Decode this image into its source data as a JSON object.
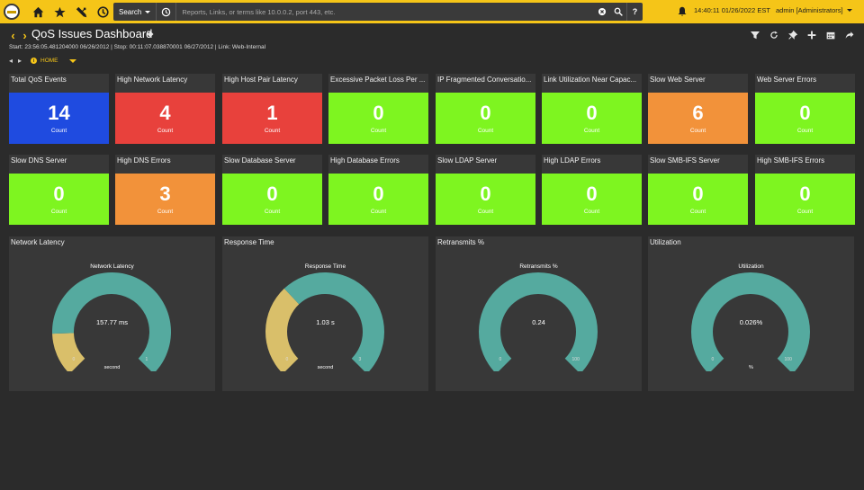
{
  "topbar": {
    "search_type": "Search",
    "search_placeholder": "Reports, Links, or terms like 10.0.0.2, port 443, etc.",
    "help_label": "?",
    "clock": "14:40:11 01/26/2022 EST",
    "user": "admin [Administrators]"
  },
  "header": {
    "title": "QoS Issues Dashboard",
    "subtitle": "Start: 23:56:05.481204000 06/26/2012 | Stop: 00:11:07.038870001 06/27/2012 | Link: Web-Internal",
    "breadcrumb": "HOME"
  },
  "tiles": [
    {
      "label": "Total QoS Events",
      "value": "14",
      "unit": "Count",
      "color": "#1f4be0"
    },
    {
      "label": "High Network Latency",
      "value": "4",
      "unit": "Count",
      "color": "#e8413c"
    },
    {
      "label": "High Host Pair Latency",
      "value": "1",
      "unit": "Count",
      "color": "#e8413c"
    },
    {
      "label": "Excessive Packet Loss Per ...",
      "value": "0",
      "unit": "Count",
      "color": "#7ef520"
    },
    {
      "label": "IP Fragmented Conversatio...",
      "value": "0",
      "unit": "Count",
      "color": "#7ef520"
    },
    {
      "label": "Link Utilization Near Capac...",
      "value": "0",
      "unit": "Count",
      "color": "#7ef520"
    },
    {
      "label": "Slow Web Server",
      "value": "6",
      "unit": "Count",
      "color": "#f2923a"
    },
    {
      "label": "Web Server Errors",
      "value": "0",
      "unit": "Count",
      "color": "#7ef520"
    },
    {
      "label": "Slow DNS Server",
      "value": "0",
      "unit": "Count",
      "color": "#7ef520"
    },
    {
      "label": "High DNS Errors",
      "value": "3",
      "unit": "Count",
      "color": "#f2923a"
    },
    {
      "label": "Slow Database Server",
      "value": "0",
      "unit": "Count",
      "color": "#7ef520"
    },
    {
      "label": "High Database Errors",
      "value": "0",
      "unit": "Count",
      "color": "#7ef520"
    },
    {
      "label": "Slow LDAP Server",
      "value": "0",
      "unit": "Count",
      "color": "#7ef520"
    },
    {
      "label": "High LDAP Errors",
      "value": "0",
      "unit": "Count",
      "color": "#7ef520"
    },
    {
      "label": "Slow SMB-IFS Server",
      "value": "0",
      "unit": "Count",
      "color": "#7ef520"
    },
    {
      "label": "High SMB-IFS Errors",
      "value": "0",
      "unit": "Count",
      "color": "#7ef520"
    }
  ],
  "gauges": [
    {
      "panel_label": "Network Latency",
      "title": "Network Latency",
      "value_text": "157.77 ms",
      "unit": "second",
      "min": "0",
      "max": "1",
      "fill_fraction": 0.16,
      "fill_color": "#d9bf6a",
      "track_color": "#55aa9f"
    },
    {
      "panel_label": "Response Time",
      "title": "Response Time",
      "value_text": "1.03 s",
      "unit": "second",
      "min": "0",
      "max": "3",
      "fill_fraction": 0.34,
      "fill_color": "#d9bf6a",
      "track_color": "#55aa9f"
    },
    {
      "panel_label": "Retransmits %",
      "title": "Retransmits %",
      "value_text": "0.24",
      "unit": "",
      "min": "0",
      "max": "100",
      "fill_fraction": 0.0024,
      "fill_color": "#d9bf6a",
      "track_color": "#55aa9f"
    },
    {
      "panel_label": "Utilization",
      "title": "Utilization",
      "value_text": "0.026%",
      "unit": "%",
      "min": "0",
      "max": "100",
      "fill_fraction": 0.00026,
      "fill_color": "#d9bf6a",
      "track_color": "#55aa9f"
    }
  ]
}
